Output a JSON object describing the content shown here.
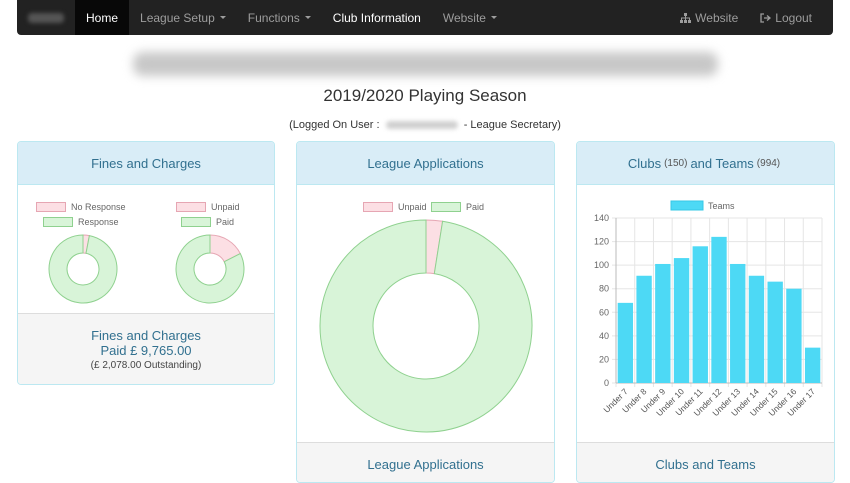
{
  "nav": {
    "home": "Home",
    "league_setup": "League Setup",
    "functions": "Functions",
    "club_information": "Club Information",
    "website": "Website",
    "website_right": "Website",
    "logout": "Logout"
  },
  "header": {
    "season": "2019/2020 Playing Season",
    "logged_prefix": "(Logged On User : ",
    "logged_suffix": " - League Secretary)"
  },
  "fines_panel": {
    "title": "Fines and Charges",
    "legend_left": [
      "No Response",
      "Response"
    ],
    "legend_right": [
      "Unpaid",
      "Paid"
    ],
    "footer_title": "Fines and Charges",
    "paid_line": "Paid £ 9,765.00",
    "outstanding_line": "(£ 2,078.00 Outstanding)",
    "response_chart": {
      "No Response": 3,
      "Response": 97
    },
    "payment_chart": {
      "Unpaid": 17.5,
      "Paid": 82.5
    }
  },
  "applications_panel": {
    "title": "League Applications",
    "legend": [
      "Unpaid",
      "Paid"
    ],
    "footer_title": "League Applications",
    "chart": {
      "Unpaid": 2.5,
      "Paid": 97.5
    }
  },
  "clubs_panel": {
    "title_clubs": "Clubs",
    "clubs_count": "(150)",
    "title_and": "and Teams",
    "teams_count": "(994)",
    "footer_title": "Clubs and Teams"
  },
  "chart_data": {
    "type": "bar",
    "categories": [
      "Under 7",
      "Under 8",
      "Under 9",
      "Under 10",
      "Under 11",
      "Under 12",
      "Under 13",
      "Under 14",
      "Under 15",
      "Under 16",
      "Under 17"
    ],
    "series": [
      {
        "name": "Teams",
        "values": [
          68,
          91,
          101,
          106,
          116,
          124,
          101,
          91,
          86,
          80,
          30
        ]
      }
    ],
    "ylim": [
      0,
      140
    ],
    "yticks": [
      0,
      20,
      40,
      60,
      80,
      100,
      120,
      140
    ],
    "legend": "top"
  },
  "colors": {
    "pink_fill": "#fcdfe4",
    "pink_border": "#e6a6b3",
    "green_fill": "#d8f4d8",
    "green_border": "#8fd18f",
    "bar_fill": "#4dd9f5",
    "heading_text": "#31708f"
  },
  "icons": {
    "website_right": "sitemap-icon",
    "logout": "logout-icon"
  }
}
